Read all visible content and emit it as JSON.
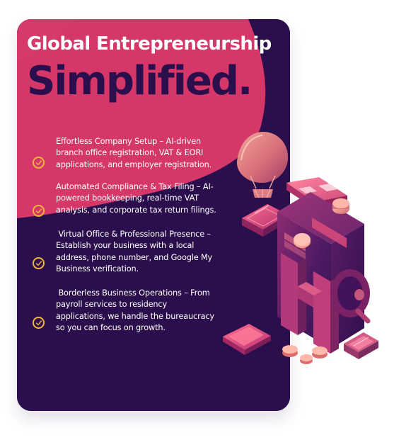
{
  "headline": {
    "line1": "Global Entrepreneurship",
    "line2": "Simplified."
  },
  "features": [
    {
      "text": "Effortless Company Setup – AI-driven\nbranch office registration, VAT & EORI\napplications, and employer registration."
    },
    {
      "text": "Automated Compliance & Tax Filing – AI-\npowered bookkeeping, real-time VAT\nanalysis, and corporate tax return filings."
    },
    {
      "text": " Virtual Office & Professional Presence –\nEstablish your business with a local\naddress, phone number, and Google My\nBusiness verification."
    },
    {
      "text": " Borderless Business Operations – From\npayroll services to residency\napplications, we handle the bureaucracy\nso you can focus on growth."
    }
  ],
  "colors": {
    "card_purple": "#2b0f4d",
    "card_pink": "#d43768",
    "check_gold": "#f0b43b"
  },
  "illustration": {
    "name": "isometric-hq-building"
  }
}
